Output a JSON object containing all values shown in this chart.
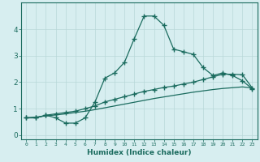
{
  "xlabel": "Humidex (Indice chaleur)",
  "x": [
    0,
    1,
    2,
    3,
    4,
    5,
    6,
    7,
    8,
    9,
    10,
    11,
    12,
    13,
    14,
    15,
    16,
    17,
    18,
    19,
    20,
    21,
    22,
    23
  ],
  "line1": [
    0.65,
    0.65,
    0.75,
    0.65,
    0.45,
    0.45,
    0.65,
    1.25,
    2.15,
    2.35,
    2.75,
    3.65,
    4.5,
    4.5,
    4.15,
    3.25,
    3.15,
    3.05,
    2.55,
    2.25,
    2.35,
    2.25,
    2.05,
    1.75
  ],
  "line2": [
    0.65,
    0.65,
    0.75,
    0.8,
    0.85,
    0.9,
    1.0,
    1.1,
    1.25,
    1.35,
    1.45,
    1.55,
    1.65,
    1.72,
    1.8,
    1.85,
    1.93,
    2.0,
    2.1,
    2.2,
    2.3,
    2.3,
    2.28,
    1.78
  ],
  "line3": [
    0.65,
    0.68,
    0.72,
    0.76,
    0.8,
    0.85,
    0.9,
    0.96,
    1.03,
    1.1,
    1.17,
    1.24,
    1.31,
    1.38,
    1.44,
    1.5,
    1.56,
    1.62,
    1.67,
    1.72,
    1.76,
    1.79,
    1.82,
    1.78
  ],
  "line_color": "#1a6b5e",
  "bg_color": "#d7eef0",
  "grid_color": "#b8d8d8",
  "ylim": [
    -0.15,
    5.0
  ],
  "xlim": [
    -0.5,
    23.5
  ],
  "yticks": [
    0,
    1,
    2,
    3,
    4
  ],
  "xticks": [
    0,
    1,
    2,
    3,
    4,
    5,
    6,
    7,
    8,
    9,
    10,
    11,
    12,
    13,
    14,
    15,
    16,
    17,
    18,
    19,
    20,
    21,
    22,
    23
  ]
}
